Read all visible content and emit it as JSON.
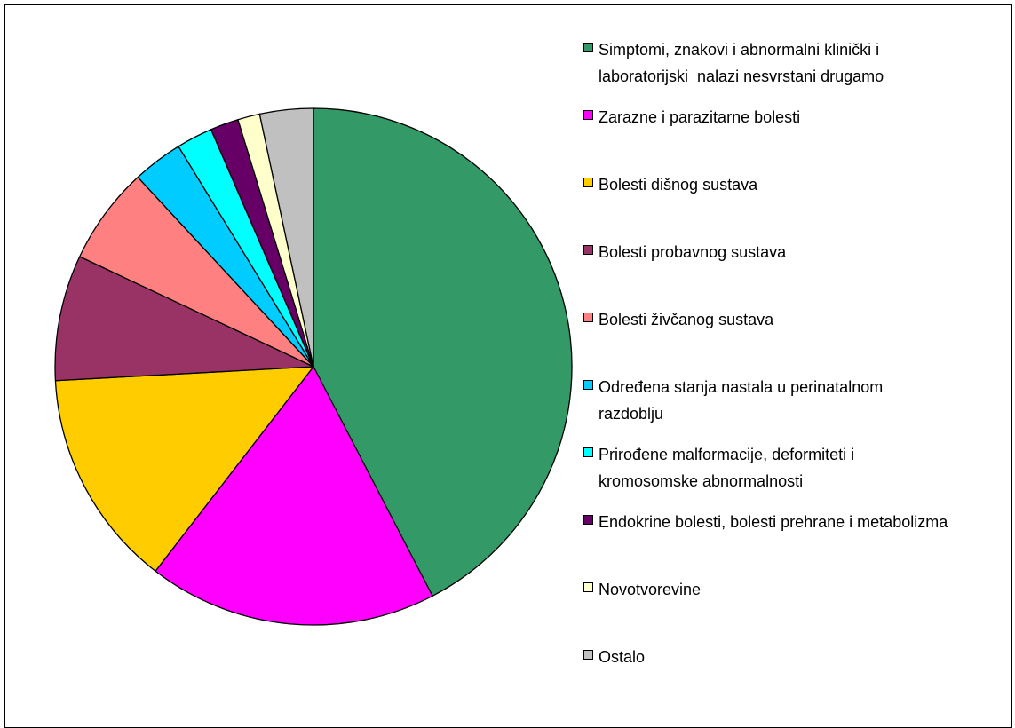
{
  "chart_data": {
    "type": "pie",
    "title": "",
    "legend_position": "right",
    "series": [
      {
        "values": [
          {
            "label": "Simptomi, znakovi i abnormalni klinički i laboratorijski  nalazi nesvrstani drugamo",
            "value": 43.1,
            "color": "#339966"
          },
          {
            "label": "Zarazne i parazitarne bolesti",
            "value": 18.4,
            "color": "#FF00FF"
          },
          {
            "label": "Bolesti dišnog sustava",
            "value": 13.9,
            "color": "#FFCC00"
          },
          {
            "label": "Bolesti probavnog sustava",
            "value": 8.0,
            "color": "#993366"
          },
          {
            "label": "Bolesti živčanog sustava",
            "value": 6.2,
            "color": "#FF8080"
          },
          {
            "label": "Određena stanja nastala u perinatalnom razdoblju",
            "value": 3.2,
            "color": "#00CCFF"
          },
          {
            "label": "Prirođene malformacije, deformiteti i kromosomske abnormalnosti",
            "value": 2.3,
            "color": "#00FFFF"
          },
          {
            "label": "Endokrine bolesti, bolesti prehrane i metabolizma",
            "value": 1.8,
            "color": "#660066"
          },
          {
            "label": "Novotvorevine",
            "value": 1.4,
            "color": "#FFFFCC"
          },
          {
            "label": "Ostalo",
            "value": 3.4,
            "color": "#C0C0C0"
          }
        ]
      }
    ],
    "legend": [
      {
        "label": "Simptomi, znakovi i abnormalni klinički i\nlaboratorijski  nalazi nesvrstani drugamo",
        "color": "#339966"
      },
      {
        "label": "Zarazne i parazitarne bolesti",
        "color": "#FF00FF"
      },
      {
        "label": "Bolesti dišnog sustava",
        "color": "#FFCC00"
      },
      {
        "label": "Bolesti probavnog sustava",
        "color": "#993366"
      },
      {
        "label": "Bolesti živčanog sustava",
        "color": "#FF8080"
      },
      {
        "label": "Određena stanja nastala u perinatalnom\nrazdoblju",
        "color": "#00CCFF"
      },
      {
        "label": "Prirođene malformacije, deformiteti i\nkromosomske abnormalnosti",
        "color": "#00FFFF"
      },
      {
        "label": "Endokrine bolesti, bolesti prehrane i metabolizma",
        "color": "#660066"
      },
      {
        "label": "Novotvorevine",
        "color": "#FFFFCC"
      },
      {
        "label": "Ostalo",
        "color": "#C0C0C0"
      }
    ]
  }
}
